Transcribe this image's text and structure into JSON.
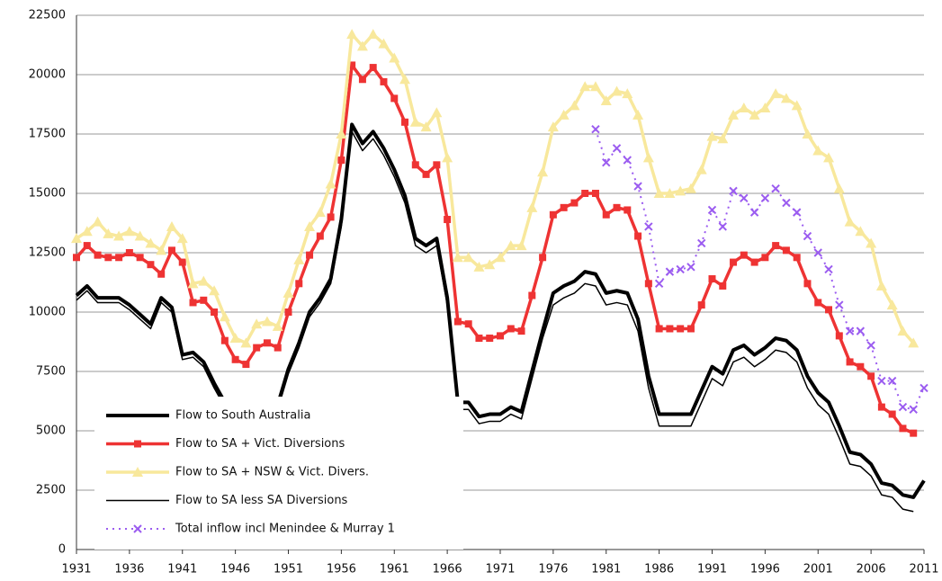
{
  "chart_data": {
    "type": "line",
    "x": [
      1931,
      1932,
      1933,
      1934,
      1935,
      1936,
      1937,
      1938,
      1939,
      1940,
      1941,
      1942,
      1943,
      1944,
      1945,
      1946,
      1947,
      1948,
      1949,
      1950,
      1951,
      1952,
      1953,
      1954,
      1955,
      1956,
      1957,
      1958,
      1959,
      1960,
      1961,
      1962,
      1963,
      1964,
      1965,
      1966,
      1967,
      1968,
      1969,
      1970,
      1971,
      1972,
      1973,
      1974,
      1975,
      1976,
      1977,
      1978,
      1979,
      1980,
      1981,
      1982,
      1983,
      1984,
      1985,
      1986,
      1987,
      1988,
      1989,
      1990,
      1991,
      1992,
      1993,
      1994,
      1995,
      1996,
      1997,
      1998,
      1999,
      2000,
      2001,
      2002,
      2003,
      2004,
      2005,
      2006,
      2007,
      2008,
      2009,
      2010,
      2011
    ],
    "xlim": [
      1931,
      2011
    ],
    "xticks": [
      1931,
      1936,
      1941,
      1946,
      1951,
      1956,
      1961,
      1966,
      1971,
      1976,
      1981,
      1986,
      1991,
      1996,
      2001,
      2006,
      2011
    ],
    "ylim": [
      0,
      22500
    ],
    "yticks": [
      0,
      2500,
      5000,
      7500,
      10000,
      12500,
      15000,
      17500,
      20000,
      22500
    ],
    "grid": true,
    "legend": "lower left",
    "series": [
      {
        "name": "Flow to South Australia",
        "color": "#000000",
        "style": "thick",
        "values": [
          10700,
          11100,
          10600,
          10600,
          10600,
          10300,
          9900,
          9500,
          10600,
          10200,
          8200,
          8300,
          7900,
          7000,
          6200,
          5800,
          5800,
          6100,
          6300,
          6100,
          7600,
          8700,
          10000,
          10600,
          11400,
          13900,
          17900,
          17100,
          17600,
          16900,
          16000,
          14900,
          13100,
          12800,
          13100,
          10600,
          6200,
          6200,
          5600,
          5700,
          5700,
          6000,
          5800,
          7500,
          9200,
          10800,
          11100,
          11300,
          11700,
          11600,
          10800,
          10900,
          10800,
          9700,
          7300,
          5700,
          5700,
          5700,
          5700,
          6700,
          7700,
          7400,
          8400,
          8600,
          8200,
          8500,
          8900,
          8800,
          8400,
          7300,
          6600,
          6200,
          5200,
          4100,
          4000,
          3600,
          2800,
          2700,
          2300,
          2200,
          2900
        ]
      },
      {
        "name": "Flow to SA + Vict. Diversions",
        "color": "#ee3333",
        "marker": "square",
        "values": [
          12300,
          12800,
          12400,
          12300,
          12300,
          12500,
          12300,
          12000,
          11600,
          12600,
          12100,
          10400,
          10500,
          10000,
          8800,
          8000,
          7800,
          8500,
          8700,
          8500,
          10000,
          11200,
          12400,
          13200,
          14000,
          16400,
          20400,
          19800,
          20300,
          19700,
          19000,
          18000,
          16200,
          15800,
          16200,
          13900,
          9600,
          9500,
          8900,
          8900,
          9000,
          9300,
          9200,
          10700,
          12300,
          14100,
          14400,
          14600,
          15000,
          15000,
          14100,
          14400,
          14300,
          13200,
          11200,
          9300,
          9300,
          9300,
          9300,
          10300,
          11400,
          11100,
          12100,
          12400,
          12100,
          12300,
          12800,
          12600,
          12300,
          11200,
          10400,
          10100,
          9000,
          7900,
          7700,
          7300,
          6000,
          5700,
          5100,
          4900,
          null
        ]
      },
      {
        "name": "Flow to SA + NSW & Vict. Divers.",
        "color": "#f8e89c",
        "marker": "triangle",
        "values": [
          13100,
          13400,
          13800,
          13300,
          13200,
          13400,
          13200,
          12900,
          12600,
          13600,
          13100,
          11200,
          11300,
          10900,
          9800,
          8900,
          8700,
          9500,
          9600,
          9400,
          10800,
          12200,
          13600,
          14200,
          15400,
          17500,
          21700,
          21200,
          21700,
          21300,
          20700,
          19800,
          18000,
          17800,
          18400,
          16500,
          12300,
          12300,
          11900,
          12000,
          12300,
          12800,
          12800,
          14400,
          15900,
          17800,
          18300,
          18700,
          19500,
          19500,
          18900,
          19300,
          19200,
          18300,
          16500,
          15000,
          15000,
          15100,
          15200,
          16000,
          17400,
          17300,
          18300,
          18600,
          18300,
          18600,
          19200,
          19000,
          18700,
          17500,
          16800,
          16500,
          15200,
          13800,
          13400,
          12900,
          11100,
          10300,
          9200,
          8700,
          null
        ]
      },
      {
        "name": "Flow to SA less SA Diversions",
        "color": "#000000",
        "style": "thin",
        "values": [
          10500,
          10900,
          10400,
          10400,
          10400,
          10100,
          9700,
          9300,
          10400,
          10000,
          8000,
          8100,
          7700,
          6800,
          6000,
          5600,
          5600,
          5900,
          6100,
          5900,
          7400,
          8500,
          9800,
          10400,
          11200,
          13600,
          17600,
          16800,
          17300,
          16600,
          15700,
          14600,
          12800,
          12500,
          12800,
          10300,
          5900,
          5900,
          5300,
          5400,
          5400,
          5700,
          5500,
          7200,
          8900,
          10300,
          10600,
          10800,
          11200,
          11100,
          10300,
          10400,
          10300,
          9200,
          6800,
          5200,
          5200,
          5200,
          5200,
          6200,
          7200,
          6900,
          7900,
          8100,
          7700,
          8000,
          8400,
          8300,
          7900,
          6800,
          6100,
          5700,
          4700,
          3600,
          3500,
          3100,
          2300,
          2200,
          1700,
          1600,
          null
        ]
      },
      {
        "name": "Total inflow incl Menindee & Murray 1",
        "color": "#9b5cf0",
        "marker": "x",
        "style": "dotted",
        "values": [
          null,
          null,
          null,
          null,
          null,
          null,
          null,
          null,
          null,
          null,
          null,
          null,
          null,
          null,
          null,
          null,
          null,
          null,
          null,
          null,
          null,
          null,
          null,
          null,
          null,
          null,
          null,
          null,
          null,
          null,
          null,
          null,
          null,
          null,
          null,
          null,
          null,
          null,
          null,
          null,
          null,
          null,
          null,
          null,
          null,
          null,
          null,
          null,
          null,
          17700,
          16300,
          16900,
          16400,
          15300,
          13600,
          11200,
          11700,
          11800,
          11900,
          12900,
          14300,
          13600,
          15100,
          14800,
          14200,
          14800,
          15200,
          14600,
          14200,
          13200,
          12500,
          11800,
          10300,
          9200,
          9200,
          8600,
          7100,
          7100,
          6000,
          5900,
          6800
        ]
      }
    ]
  }
}
